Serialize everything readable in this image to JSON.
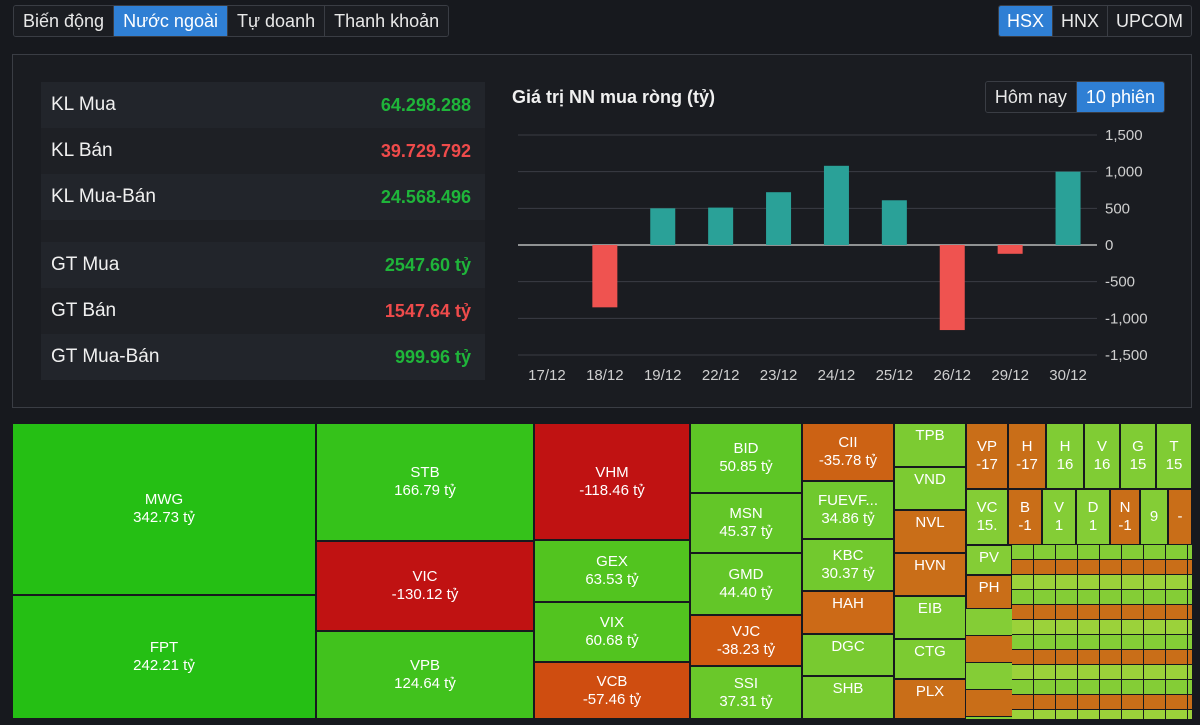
{
  "tabs": [
    {
      "label": "Biến động",
      "active": false
    },
    {
      "label": "Nước ngoài",
      "active": true
    },
    {
      "label": "Tự doanh",
      "active": false
    },
    {
      "label": "Thanh khoản",
      "active": false
    }
  ],
  "exchanges": [
    {
      "label": "HSX",
      "active": true
    },
    {
      "label": "HNX",
      "active": false
    },
    {
      "label": "UPCOM",
      "active": false
    }
  ],
  "stats": {
    "kl_mua": {
      "label": "KL Mua",
      "value": "64.298.288"
    },
    "kl_ban": {
      "label": "KL Bán",
      "value": "39.729.792"
    },
    "kl_mua_ban": {
      "label": "KL Mua-Bán",
      "value": "24.568.496"
    },
    "gt_mua": {
      "label": "GT Mua",
      "value": "2547.60 tỷ"
    },
    "gt_ban": {
      "label": "GT Bán",
      "value": "1547.64 tỷ"
    },
    "gt_mua_ban": {
      "label": "GT Mua-Bán",
      "value": "999.96 tỷ"
    }
  },
  "chart_toggle": {
    "today": "Hôm nay",
    "ten_sessions": "10 phiên"
  },
  "colors": {
    "positive": "#2aa198",
    "negative": "#ef5350",
    "green_text": "#1fb53a",
    "red_text": "#ef4b4b"
  },
  "chart_data": {
    "type": "bar",
    "title": "Giá trị NN mua ròng (tỷ)",
    "categories": [
      "17/12",
      "18/12",
      "19/12",
      "22/12",
      "23/12",
      "24/12",
      "25/12",
      "26/12",
      "29/12",
      "30/12"
    ],
    "values": [
      0,
      -850,
      500,
      510,
      720,
      1080,
      610,
      -1160,
      -120,
      1000
    ],
    "ylim": [
      -1500,
      1500
    ],
    "yticks": [
      "1,500",
      "1,000",
      "500",
      "0",
      "-500",
      "-1,000",
      "-1,500"
    ],
    "ytick_values": [
      1500,
      1000,
      500,
      0,
      -500,
      -1000,
      -1500
    ],
    "grid": true
  },
  "treemap": [
    {
      "ticker": "MWG",
      "value": "342.73 tỷ"
    },
    {
      "ticker": "FPT",
      "value": "242.21 tỷ"
    },
    {
      "ticker": "STB",
      "value": "166.79 tỷ"
    },
    {
      "ticker": "VIC",
      "value": "-130.12 tỷ"
    },
    {
      "ticker": "VPB",
      "value": "124.64 tỷ"
    },
    {
      "ticker": "VHM",
      "value": "-118.46 tỷ"
    },
    {
      "ticker": "GEX",
      "value": "63.53 tỷ"
    },
    {
      "ticker": "VIX",
      "value": "60.68 tỷ"
    },
    {
      "ticker": "VCB",
      "value": "-57.46 tỷ"
    },
    {
      "ticker": "BID",
      "value": "50.85 tỷ"
    },
    {
      "ticker": "MSN",
      "value": "45.37 tỷ"
    },
    {
      "ticker": "GMD",
      "value": "44.40 tỷ"
    },
    {
      "ticker": "VJC",
      "value": "-38.23 tỷ"
    },
    {
      "ticker": "SSI",
      "value": "37.31 tỷ"
    },
    {
      "ticker": "CII",
      "value": "-35.78 tỷ"
    },
    {
      "ticker": "FUEVF...",
      "value": "34.86 tỷ"
    },
    {
      "ticker": "KBC",
      "value": "30.37 tỷ"
    },
    {
      "ticker": "HAH",
      "value": ""
    },
    {
      "ticker": "DGC",
      "value": ""
    },
    {
      "ticker": "SHB",
      "value": ""
    },
    {
      "ticker": "TPB",
      "value": ""
    },
    {
      "ticker": "VND",
      "value": ""
    },
    {
      "ticker": "NVL",
      "value": ""
    },
    {
      "ticker": "HVN",
      "value": ""
    },
    {
      "ticker": "EIB",
      "value": ""
    },
    {
      "ticker": "CTG",
      "value": ""
    },
    {
      "ticker": "PLX",
      "value": ""
    },
    {
      "ticker": "VP",
      "value": "-17"
    },
    {
      "ticker": "H",
      "value": "-17"
    },
    {
      "ticker": "H",
      "value": "16"
    },
    {
      "ticker": "V",
      "value": "16"
    },
    {
      "ticker": "G",
      "value": "15"
    },
    {
      "ticker": "T",
      "value": "15"
    },
    {
      "ticker": "VC",
      "value": "15."
    },
    {
      "ticker": "B",
      "value": "-1"
    },
    {
      "ticker": "V",
      "value": "1"
    },
    {
      "ticker": "D",
      "value": "1"
    },
    {
      "ticker": "N",
      "value": "-1"
    },
    {
      "ticker": "",
      "value": "9"
    },
    {
      "ticker": "",
      "value": "-"
    },
    {
      "ticker": "PV",
      "value": ""
    },
    {
      "ticker": "PH",
      "value": ""
    }
  ]
}
